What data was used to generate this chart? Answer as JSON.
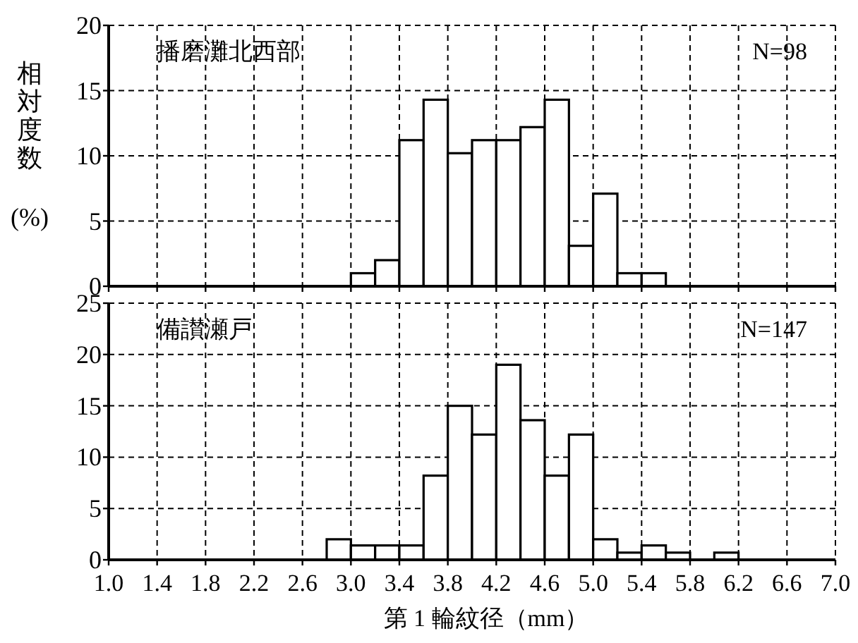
{
  "chart_data": [
    {
      "type": "histogram",
      "ylabel": "相対度数 (%)",
      "annotations": [
        "播磨灘北西部",
        "N=98"
      ],
      "bins": [
        3.0,
        3.2,
        3.4,
        3.6,
        3.8,
        4.0,
        4.2,
        4.4,
        4.6,
        4.8,
        5.0,
        5.2,
        5.4,
        5.6
      ],
      "values": [
        1.0,
        2.0,
        11.2,
        14.3,
        10.2,
        11.2,
        11.2,
        12.2,
        14.3,
        3.1,
        7.1,
        1.0,
        1.0
      ],
      "color": "#ffffff",
      "xlim": [
        1.0,
        7.0
      ],
      "ylim": [
        0,
        20
      ],
      "xticks": [
        1.0,
        1.4,
        1.8,
        2.2,
        2.6,
        3.0,
        3.4,
        3.8,
        4.2,
        4.6,
        5.0,
        5.4,
        5.8,
        6.2,
        6.6,
        7.0
      ],
      "yticks": [
        0,
        5,
        10,
        15,
        20
      ],
      "grid": true,
      "tick_labels": "y"
    },
    {
      "type": "histogram",
      "xlabel": "第 1 輪紋径（mm）",
      "annotations": [
        "備讃瀬戸",
        "N=147"
      ],
      "bins": [
        2.8,
        3.0,
        3.2,
        3.4,
        3.6,
        3.8,
        4.0,
        4.2,
        4.4,
        4.6,
        4.8,
        5.0,
        5.2,
        5.4,
        5.6,
        5.8,
        6.0,
        6.2
      ],
      "values": [
        2.0,
        1.4,
        1.4,
        1.4,
        8.2,
        15.0,
        12.2,
        19.0,
        13.6,
        8.2,
        12.2,
        2.0,
        0.7,
        1.4,
        0.7,
        0,
        0.7
      ],
      "color": "#ffffff",
      "xlim": [
        1.0,
        7.0
      ],
      "ylim": [
        0,
        25
      ],
      "xticks": [
        {
          "value": 1.0,
          "label": "1.0"
        },
        {
          "value": 1.4,
          "label": "1.4"
        },
        {
          "value": 1.8,
          "label": "1.8"
        },
        {
          "value": 2.2,
          "label": "2.2"
        },
        {
          "value": 2.6,
          "label": "2.6"
        },
        {
          "value": 3.0,
          "label": "3.0"
        },
        {
          "value": 3.4,
          "label": "3.4"
        },
        {
          "value": 3.8,
          "label": "3.8"
        },
        {
          "value": 4.2,
          "label": "4.2"
        },
        {
          "value": 4.6,
          "label": "4.6"
        },
        {
          "value": 5.0,
          "label": "5.0"
        },
        {
          "value": 5.4,
          "label": "5.4"
        },
        {
          "value": 5.8,
          "label": "5.8"
        },
        {
          "value": 6.2,
          "label": "6.2"
        },
        {
          "value": 6.6,
          "label": "6.6"
        },
        {
          "value": 7.0,
          "label": "7.0"
        }
      ],
      "yticks": [
        0,
        5,
        10,
        15,
        20,
        25
      ],
      "grid": true
    }
  ]
}
